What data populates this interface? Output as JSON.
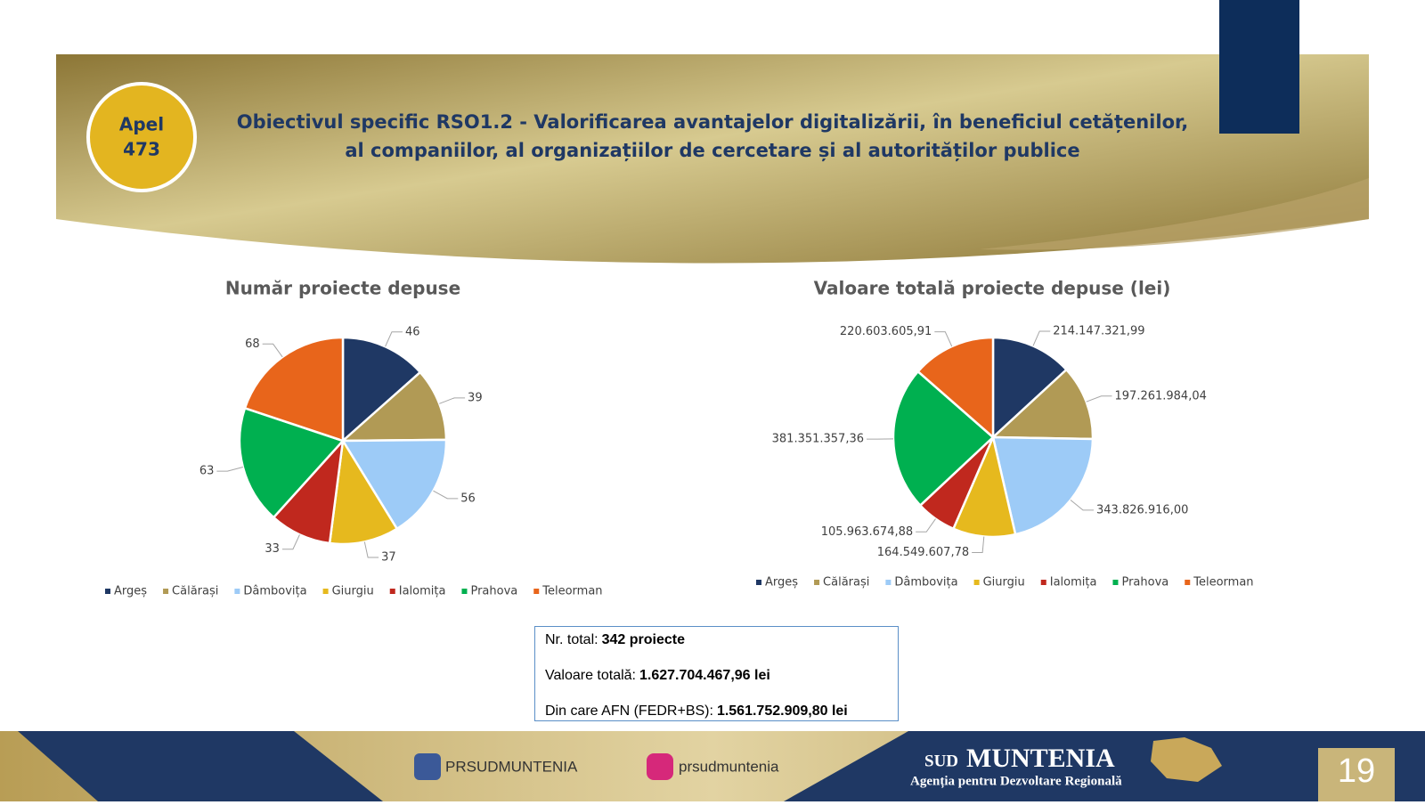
{
  "header": {
    "badge": [
      "Apel",
      "473"
    ],
    "title_lines": [
      "Obiectivul specific RSO1.2 - Valorificarea avantajelor digitalizării, în beneficiul cetățenilor,",
      "al companiilor, al organizațiilor de cercetare și al autorităților publice"
    ]
  },
  "chart_data": [
    {
      "type": "pie",
      "title": "Număr proiecte depuse",
      "categories": [
        "Argeș",
        "Călărași",
        "Dâmbovița",
        "Giurgiu",
        "Ialomița",
        "Prahova",
        "Teleorman"
      ],
      "values": [
        46,
        39,
        56,
        37,
        33,
        63,
        68
      ],
      "colors": [
        "#1f3864",
        "#b19a55",
        "#9dcbf7",
        "#e6b91e",
        "#c0281e",
        "#00b050",
        "#e8651b"
      ]
    },
    {
      "type": "pie",
      "title": "Valoare totală proiecte depuse (lei)",
      "categories": [
        "Argeș",
        "Călărași",
        "Dâmbovița",
        "Giurgiu",
        "Ialomița",
        "Prahova",
        "Teleorman"
      ],
      "values": [
        214147321.99,
        197261984.04,
        343826916.0,
        164549607.78,
        105963674.88,
        381351357.36,
        220603605.91
      ],
      "value_labels": [
        "214.147.321,99",
        "197.261.984,04",
        "343.826.916,00",
        "164.549.607,78",
        "105.963.674,88",
        "381.351.357,36",
        "220.603.605,91"
      ],
      "colors": [
        "#1f3864",
        "#b19a55",
        "#9dcbf7",
        "#e6b91e",
        "#c0281e",
        "#00b050",
        "#e8651b"
      ]
    }
  ],
  "summary": [
    {
      "label": "Nr. total:",
      "value": "342 proiecte"
    },
    {
      "label": "Valoare totală:",
      "value": "1.627.704.467,96 lei"
    },
    {
      "label": "Din care AFN (FEDR+BS):",
      "value": "1.561.752.909,80 lei"
    }
  ],
  "footer": {
    "facebook": "PRSUDMUNTENIA",
    "instagram": "prsudmuntenia",
    "brand_small": "SUD",
    "brand": "MUNTENIA",
    "agency": "Agenția pentru Dezvoltare Regională",
    "page": "19"
  }
}
